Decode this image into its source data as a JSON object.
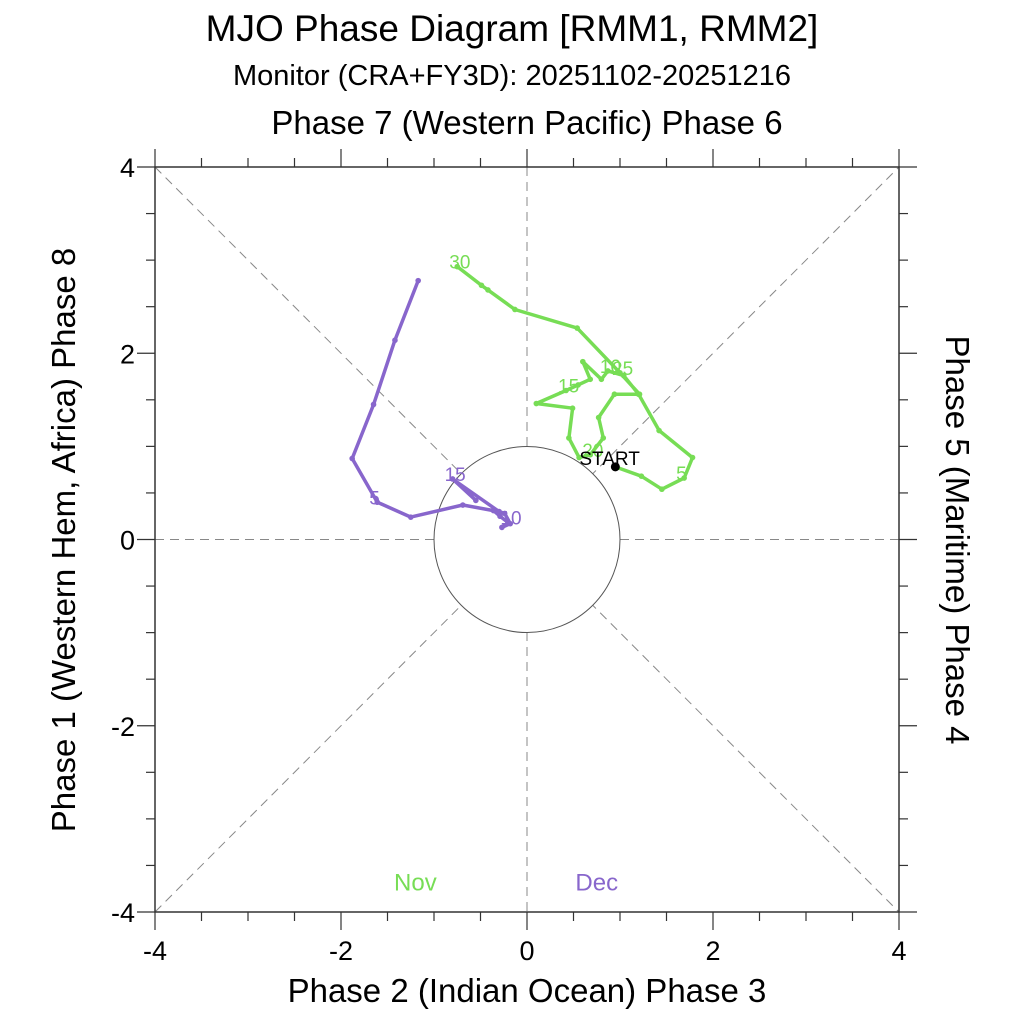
{
  "chart_data": {
    "type": "line",
    "title": "MJO Phase Diagram [RMM1, RMM2]",
    "subtitle": "Monitor (CRA+FY3D): 20251102-20251216",
    "xlabel": "Phase 2 (Indian Ocean) Phase 3",
    "ylabel_left": "Phase 1 (Western Hem, Africa) Phase 8",
    "ylabel_right": "Phase 5 (Maritime) Phase 4",
    "top_label": "Phase 7 (Western Pacific) Phase 6",
    "xlim": [
      -4,
      4
    ],
    "ylim": [
      -4,
      4
    ],
    "x_ticks": [
      -4,
      -2,
      0,
      2,
      4
    ],
    "y_ticks": [
      -4,
      -2,
      0,
      2,
      4
    ],
    "x_tick_labels": [
      "-4",
      "-2",
      "0",
      "2",
      "4"
    ],
    "y_tick_labels": [
      "-4",
      "-2",
      "0",
      "2",
      "4"
    ],
    "minor_tick_step": 0.5,
    "unit_circle_radius": 1,
    "start_label": "START",
    "legend": [
      {
        "name": "Nov",
        "color": "#77dd55"
      },
      {
        "name": "Dec",
        "color": "#8866cc"
      }
    ],
    "series": [
      {
        "name": "Nov",
        "color": "#77dd55",
        "days": [
          2,
          3,
          4,
          5,
          6,
          7,
          8,
          9,
          10,
          11,
          12,
          13,
          14,
          15,
          16,
          17,
          18,
          19,
          20,
          21,
          22,
          23,
          24,
          25,
          26,
          27,
          28,
          29,
          30
        ],
        "rmm1": [
          0.95,
          1.23,
          1.45,
          1.69,
          1.78,
          1.42,
          1.2,
          1.04,
          0.87,
          0.8,
          0.6,
          0.68,
          0.55,
          0.42,
          0.1,
          0.49,
          0.45,
          0.56,
          0.68,
          0.82,
          0.77,
          0.94,
          1.21,
          1.0,
          0.54,
          -0.13,
          -0.42,
          -0.49,
          -0.75
        ],
        "rmm2": [
          0.78,
          0.68,
          0.54,
          0.66,
          0.88,
          1.17,
          1.56,
          1.76,
          1.81,
          1.72,
          1.91,
          1.72,
          1.66,
          1.6,
          1.46,
          1.41,
          1.09,
          0.88,
          0.91,
          1.09,
          1.31,
          1.56,
          1.56,
          1.79,
          2.27,
          2.47,
          2.68,
          2.73,
          2.93
        ],
        "labels": [
          {
            "day": 5,
            "text": "5"
          },
          {
            "day": 10,
            "text": "10"
          },
          {
            "day": 15,
            "text": "15"
          },
          {
            "day": 20,
            "text": "20"
          },
          {
            "day": 25,
            "text": "25"
          },
          {
            "day": 30,
            "text": "30"
          }
        ]
      },
      {
        "name": "Dec",
        "color": "#8866cc",
        "days": [
          1,
          2,
          3,
          4,
          5,
          6,
          7,
          8,
          9,
          10,
          11,
          12,
          13,
          14,
          15,
          16
        ],
        "rmm1": [
          -1.17,
          -1.42,
          -1.65,
          -1.88,
          -1.61,
          -1.25,
          -0.69,
          -0.36,
          -0.29,
          -0.2,
          -0.27,
          -0.18,
          -0.24,
          -0.3,
          -0.8,
          -0.55
        ],
        "rmm2": [
          2.78,
          2.14,
          1.45,
          0.87,
          0.4,
          0.24,
          0.37,
          0.31,
          0.25,
          0.18,
          0.13,
          0.17,
          0.28,
          0.3,
          0.65,
          0.42
        ],
        "labels": [
          {
            "day": 5,
            "text": "5"
          },
          {
            "day": 10,
            "text": "10"
          },
          {
            "day": 15,
            "text": "15"
          }
        ]
      }
    ]
  }
}
